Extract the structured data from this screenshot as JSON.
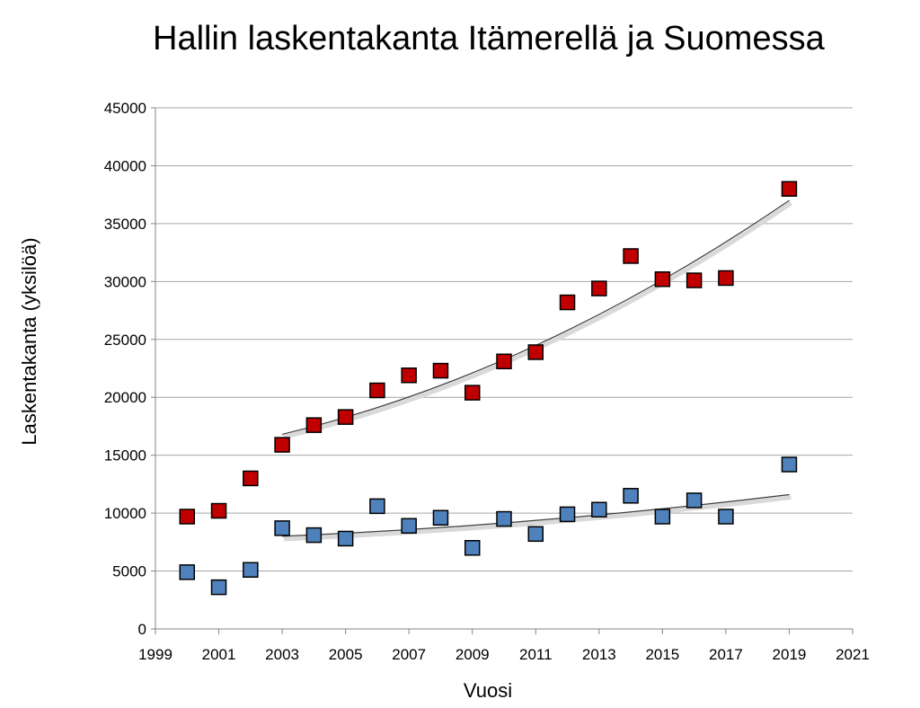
{
  "chart_data": {
    "type": "scatter",
    "title": "Hallin laskentakanta Itämerellä ja Suomessa",
    "xlabel": "Vuosi",
    "ylabel": "Laskentakanta (yksilöä)",
    "xlim": [
      1999,
      2021
    ],
    "ylim": [
      0,
      45000
    ],
    "x_ticks": [
      "1999",
      "2001",
      "2003",
      "2005",
      "2007",
      "2009",
      "2011",
      "2013",
      "2015",
      "2017",
      "2019",
      "2021"
    ],
    "y_ticks": [
      "0",
      "5000",
      "10000",
      "15000",
      "20000",
      "25000",
      "30000",
      "35000",
      "40000",
      "45000"
    ],
    "grid": "horizontal",
    "legend": "none",
    "series": [
      {
        "color": "#c00000",
        "marker": "square",
        "x": [
          2000,
          2001,
          2002,
          2003,
          2004,
          2005,
          2006,
          2007,
          2008,
          2009,
          2010,
          2011,
          2012,
          2013,
          2014,
          2015,
          2016,
          2017,
          2019
        ],
        "y": [
          9700,
          10200,
          13000,
          15900,
          17600,
          18300,
          20600,
          21900,
          22300,
          20400,
          23100,
          23900,
          28200,
          29400,
          32200,
          30200,
          30100,
          30300,
          38000
        ],
        "trendline": {
          "type": "polynomial",
          "x_range": [
            2003,
            2019
          ],
          "y_start": 16800,
          "y_end": 37000
        }
      },
      {
        "color": "#4f81bd",
        "marker": "square",
        "x": [
          2000,
          2001,
          2002,
          2003,
          2004,
          2005,
          2006,
          2007,
          2008,
          2009,
          2010,
          2011,
          2012,
          2013,
          2014,
          2015,
          2016,
          2017,
          2019
        ],
        "y": [
          4900,
          3600,
          5100,
          8700,
          8100,
          7800,
          10600,
          8900,
          9600,
          7000,
          9500,
          8200,
          9900,
          10300,
          11500,
          9700,
          11100,
          9700,
          14200
        ],
        "trendline": {
          "type": "polynomial",
          "x_range": [
            2003,
            2019
          ],
          "y_start": 8000,
          "y_end": 11600
        }
      }
    ]
  }
}
